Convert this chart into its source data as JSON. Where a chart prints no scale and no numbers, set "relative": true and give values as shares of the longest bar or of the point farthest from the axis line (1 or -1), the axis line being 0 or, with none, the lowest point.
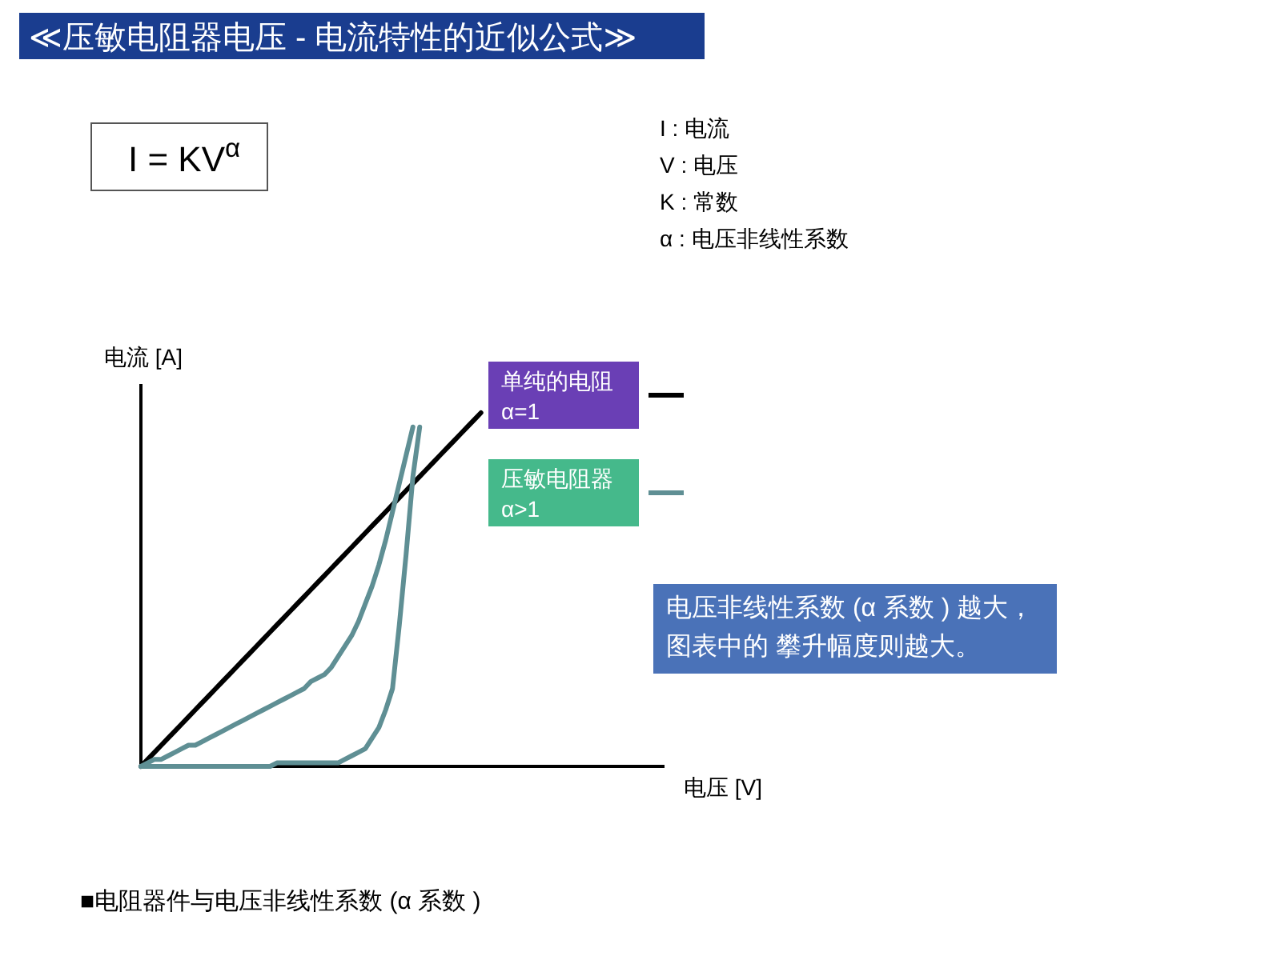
{
  "chart_data": {
    "type": "line",
    "relative": true,
    "title": "≪压敏电阻器电压 - 电流特性的近似公式≫",
    "xlabel": "电压 [V]",
    "ylabel": "电流 [A]",
    "legend": "top right",
    "line_style": "solid",
    "categories": [
      null,
      null,
      null,
      null,
      null,
      null,
      null,
      null,
      null,
      null,
      null,
      null,
      null,
      null,
      null,
      null,
      null,
      null,
      null,
      null,
      null,
      null,
      null,
      null,
      null,
      null,
      null,
      null,
      null,
      null,
      null,
      null,
      null,
      null,
      null,
      null,
      null,
      null,
      null,
      null,
      null,
      null,
      null,
      null,
      null,
      null,
      null,
      null,
      null,
      null,
      null,
      null,
      null,
      null,
      null,
      null,
      null,
      null,
      null,
      null,
      null,
      null,
      null,
      null,
      null,
      null,
      null,
      null,
      null,
      null,
      null,
      null,
      null,
      null,
      null,
      null,
      null,
      null
    ],
    "series": [
      {
        "name": "单纯的电阻\nα=1",
        "color": "#000000",
        "values": [
          0,
          0.02,
          0.04,
          0.06,
          0.08,
          0.1,
          0.12,
          0.14,
          0.16,
          0.18,
          0.2,
          0.22,
          0.24,
          0.26,
          0.28,
          0.3,
          0.32,
          0.34,
          0.36,
          0.38,
          0.4,
          0.42,
          0.44,
          0.46,
          0.48,
          0.5,
          0.52,
          0.54,
          0.56,
          0.58,
          0.6,
          0.62,
          0.64,
          0.66,
          0.68,
          0.7,
          0.72,
          0.74,
          0.76,
          0.78,
          0.8,
          0.82,
          0.84,
          0.86,
          0.88,
          0.9,
          0.92,
          0.94,
          0.96,
          0.98,
          1,
          null,
          null,
          null,
          null,
          null,
          null,
          null,
          null,
          null,
          null,
          null,
          null,
          null,
          null,
          null,
          null,
          null,
          null,
          null,
          null,
          null,
          null,
          null,
          null,
          null,
          null,
          null
        ]
      },
      {
        "name": "压敏电阻器\nα>1",
        "color": "#5f8f94",
        "values": [
          0,
          0.01,
          0.02,
          0.02,
          0.03,
          0.04,
          0.05,
          0.06,
          0.06,
          0.07,
          0.08,
          0.09,
          0.1,
          0.11,
          0.12,
          0.13,
          0.14,
          0.15,
          0.16,
          0.17,
          0.18,
          0.19,
          0.2,
          0.21,
          0.22,
          0.24,
          0.25,
          0.26,
          0.28,
          0.31,
          0.34,
          0.37,
          0.41,
          0.46,
          0.51,
          0.57,
          0.64,
          0.72,
          0.8,
          0.88,
          0.96,
          null,
          null,
          null,
          null,
          null,
          null,
          null,
          null,
          null,
          null,
          null,
          null,
          null,
          null,
          null,
          null,
          null,
          null,
          null,
          null,
          null,
          null,
          null,
          null,
          null,
          null,
          null,
          null,
          null,
          null,
          null,
          null,
          null,
          null,
          null,
          null,
          null
        ]
      },
      {
        "color": "#5f8f94",
        "values": [
          0,
          0,
          0,
          0,
          0,
          0,
          0,
          0,
          0,
          0,
          0,
          0,
          0,
          0,
          0,
          0,
          0,
          0,
          0,
          0,
          0.01,
          0.01,
          0.01,
          0.01,
          0.01,
          0.01,
          0.01,
          0.01,
          0.01,
          0.01,
          0.02,
          0.03,
          0.04,
          0.05,
          0.08,
          0.11,
          0.16,
          0.22,
          0.4,
          0.6,
          0.82,
          0.96,
          null,
          null,
          null,
          null,
          null,
          null,
          null,
          null,
          null,
          null,
          null,
          null,
          null,
          null,
          null,
          null,
          null,
          null,
          null,
          null,
          null,
          null,
          null,
          null,
          null,
          null,
          null,
          null,
          null,
          null,
          null,
          null,
          null,
          null,
          null,
          null
        ]
      }
    ],
    "annotations": [
      "I = KV$^{α}$",
      "I : 电流",
      "V : 电压",
      "K : 常数",
      "α : 电压非线性系数",
      "电压非线性系数 (α 系数 ) 越大，图表中的 攀升幅度则越大。",
      "■电阻器件与电压非线性系数 (α 系数 )"
    ]
  }
}
